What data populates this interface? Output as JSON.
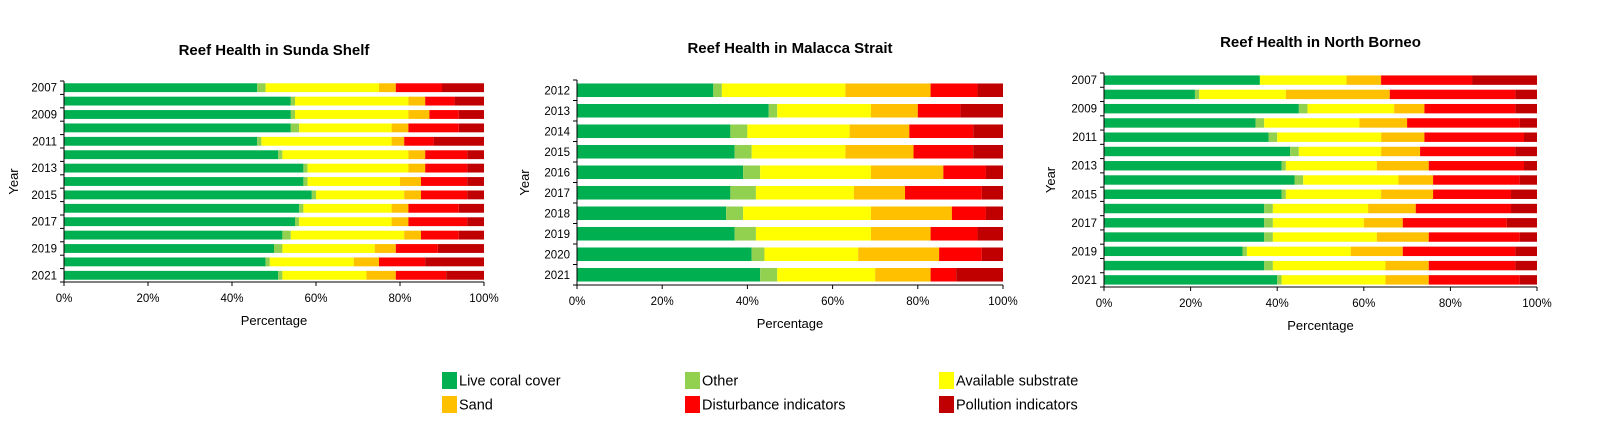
{
  "chart_data": [
    {
      "type": "bar",
      "orientation": "horizontal",
      "stacked": "percent",
      "title": "Reef Health in Sunda Shelf",
      "xlabel": "Percentage",
      "ylabel": "Year",
      "xlim": [
        0,
        100
      ],
      "x_ticks": [
        "0%",
        "20%",
        "40%",
        "60%",
        "80%",
        "100%"
      ],
      "categories": [
        "2007",
        "2008",
        "2009",
        "2010",
        "2011",
        "2012",
        "2013",
        "2014",
        "2015",
        "2016",
        "2017",
        "2018",
        "2019",
        "2020",
        "2021"
      ],
      "y_tick_labels": [
        "2007",
        "",
        "2009",
        "",
        "2011",
        "",
        "2013",
        "",
        "2015",
        "",
        "2017",
        "",
        "2019",
        "",
        "2021"
      ],
      "series": [
        {
          "name": "Live coral cover",
          "values": [
            46,
            54,
            54,
            54,
            46,
            51,
            57,
            57,
            59,
            56,
            55,
            52,
            50,
            48,
            51
          ]
        },
        {
          "name": "Other",
          "values": [
            2,
            1,
            1,
            2,
            1,
            1,
            1,
            1,
            1,
            1,
            1,
            2,
            2,
            1,
            1
          ]
        },
        {
          "name": "Available substrate",
          "values": [
            27,
            27,
            27,
            22,
            31,
            30,
            24,
            22,
            21,
            21,
            22,
            27,
            22,
            20,
            20
          ]
        },
        {
          "name": "Sand",
          "values": [
            4,
            4,
            5,
            4,
            3,
            4,
            4,
            5,
            4,
            4,
            4,
            4,
            5,
            6,
            7
          ]
        },
        {
          "name": "Disturbance indicators",
          "values": [
            11,
            7,
            7,
            12,
            7,
            10,
            10,
            11,
            11,
            12,
            14,
            9,
            10,
            11,
            12
          ]
        },
        {
          "name": "Pollution indicators",
          "values": [
            10,
            7,
            6,
            6,
            12,
            4,
            4,
            4,
            4,
            6,
            4,
            6,
            11,
            14,
            9
          ]
        }
      ]
    },
    {
      "type": "bar",
      "orientation": "horizontal",
      "stacked": "percent",
      "title": "Reef Health in Malacca Strait",
      "xlabel": "Percentage",
      "ylabel": "Year",
      "xlim": [
        0,
        100
      ],
      "x_ticks": [
        "0%",
        "20%",
        "40%",
        "60%",
        "80%",
        "100%"
      ],
      "categories": [
        "2012",
        "2013",
        "2014",
        "2015",
        "2016",
        "2017",
        "2018",
        "2019",
        "2020",
        "2021"
      ],
      "y_tick_labels": [
        "2012",
        "2013",
        "2014",
        "2015",
        "2016",
        "2017",
        "2018",
        "2019",
        "2020",
        "2021"
      ],
      "series": [
        {
          "name": "Live coral cover",
          "values": [
            32,
            45,
            36,
            37,
            39,
            36,
            35,
            37,
            41,
            43
          ]
        },
        {
          "name": "Other",
          "values": [
            2,
            2,
            4,
            4,
            4,
            6,
            4,
            5,
            3,
            4
          ]
        },
        {
          "name": "Available substrate",
          "values": [
            29,
            22,
            24,
            22,
            26,
            23,
            30,
            27,
            22,
            23
          ]
        },
        {
          "name": "Sand",
          "values": [
            20,
            11,
            14,
            16,
            17,
            12,
            19,
            14,
            19,
            13
          ]
        },
        {
          "name": "Disturbance indicators",
          "values": [
            11,
            10,
            15,
            14,
            10,
            18,
            8,
            11,
            10,
            6
          ]
        },
        {
          "name": "Pollution indicators",
          "values": [
            6,
            10,
            7,
            7,
            4,
            5,
            4,
            6,
            5,
            11
          ]
        }
      ]
    },
    {
      "type": "bar",
      "orientation": "horizontal",
      "stacked": "percent",
      "title": "Reef Health in North Borneo",
      "xlabel": "Percentage",
      "ylabel": "Year",
      "xlim": [
        0,
        100
      ],
      "x_ticks": [
        "0%",
        "20%",
        "40%",
        "60%",
        "80%",
        "100%"
      ],
      "categories": [
        "2007",
        "2008",
        "2009",
        "2010",
        "2011",
        "2012",
        "2013",
        "2014",
        "2015",
        "2016",
        "2017",
        "2018",
        "2019",
        "2020",
        "2021"
      ],
      "y_tick_labels": [
        "2007",
        "",
        "2009",
        "",
        "2011",
        "",
        "2013",
        "",
        "2015",
        "",
        "2017",
        "",
        "2019",
        "",
        "2021"
      ],
      "series": [
        {
          "name": "Live coral cover",
          "values": [
            36,
            21,
            45,
            35,
            38,
            43,
            41,
            44,
            41,
            37,
            37,
            37,
            32,
            37,
            40
          ]
        },
        {
          "name": "Other",
          "values": [
            0,
            1,
            2,
            2,
            2,
            2,
            1,
            2,
            1,
            2,
            2,
            2,
            1,
            2,
            1
          ]
        },
        {
          "name": "Available substrate",
          "values": [
            20,
            20,
            20,
            22,
            24,
            19,
            21,
            22,
            22,
            22,
            21,
            24,
            24,
            26,
            24
          ]
        },
        {
          "name": "Sand",
          "values": [
            8,
            24,
            7,
            11,
            10,
            9,
            12,
            8,
            12,
            11,
            9,
            12,
            12,
            10,
            10
          ]
        },
        {
          "name": "Disturbance indicators",
          "values": [
            21,
            29,
            21,
            26,
            23,
            22,
            22,
            20,
            18,
            22,
            24,
            21,
            26,
            20,
            21
          ]
        },
        {
          "name": "Pollution indicators",
          "values": [
            15,
            5,
            5,
            4,
            3,
            5,
            3,
            4,
            6,
            6,
            7,
            4,
            5,
            5,
            4
          ]
        }
      ]
    }
  ],
  "legend": {
    "placement": "bottom",
    "items": [
      {
        "label": "Live coral cover",
        "color": "#00b050"
      },
      {
        "label": "Other",
        "color": "#92d050"
      },
      {
        "label": "Available substrate",
        "color": "#ffff00"
      },
      {
        "label": "Sand",
        "color": "#ffc000"
      },
      {
        "label": "Disturbance indicators",
        "color": "#ff0000"
      },
      {
        "label": "Pollution indicators",
        "color": "#c00000"
      }
    ]
  },
  "colors": {
    "Live coral cover": "#00b050",
    "Other": "#92d050",
    "Available substrate": "#ffff00",
    "Sand": "#ffc000",
    "Disturbance indicators": "#ff0000",
    "Pollution indicators": "#c00000"
  }
}
